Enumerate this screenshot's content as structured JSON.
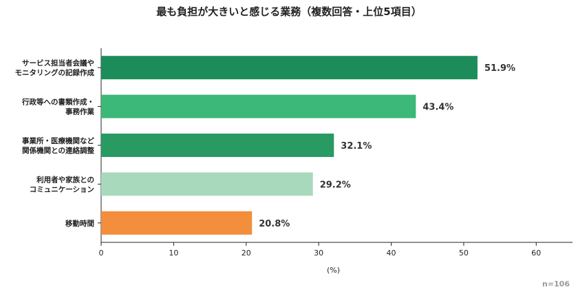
{
  "chart_data": {
    "type": "bar",
    "orientation": "horizontal",
    "title": "最も負担が大きいと感じる業務（複数回答・上位5項目）",
    "xlabel": "(%)",
    "ylabel": "",
    "xlim": [
      0,
      65
    ],
    "xticks": [
      0,
      10,
      20,
      30,
      40,
      50,
      60
    ],
    "grid": false,
    "categories": [
      [
        "サービス担当者会議や",
        "モニタリングの記録作成"
      ],
      [
        "行政等への書類作成・",
        "事務作業"
      ],
      [
        "事業所・医療機関など",
        "関係機関との連絡調整"
      ],
      [
        "利用者や家族との",
        "コミュニケーション"
      ],
      [
        "移動時間"
      ]
    ],
    "values": [
      51.9,
      43.4,
      32.1,
      29.2,
      20.8
    ],
    "value_labels": [
      "51.9%",
      "43.4%",
      "32.1%",
      "29.2%",
      "20.8%"
    ],
    "colors": [
      "#1b8c5a",
      "#3cb878",
      "#2a9a63",
      "#a9d9bd",
      "#f28e3c"
    ],
    "note": "n=106"
  }
}
